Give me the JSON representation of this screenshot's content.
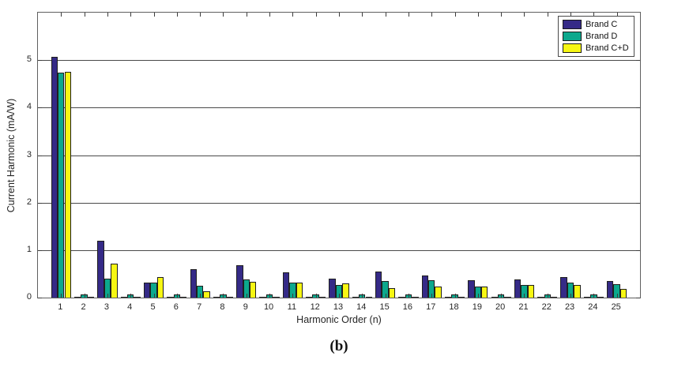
{
  "figure": {
    "ylabel": "Current Harmonic (mA/W)",
    "xlabel": "Harmonic Order (n)",
    "caption": "(b)"
  },
  "colors": {
    "brand_c": "#352A87",
    "brand_d": "#0CA88D",
    "brand_cd": "#F7F713",
    "bar_edge": "#1f1f1f",
    "grid": "#4a4a4a",
    "axis_box": "#5f5f5f"
  },
  "chart_data": {
    "type": "bar",
    "title": "",
    "xlabel": "Harmonic Order (n)",
    "ylabel": "Current Harmonic (mA/W)",
    "categories": [
      "1",
      "2",
      "3",
      "4",
      "5",
      "6",
      "7",
      "8",
      "9",
      "10",
      "11",
      "12",
      "13",
      "14",
      "15",
      "16",
      "17",
      "18",
      "19",
      "20",
      "21",
      "22",
      "23",
      "24",
      "25"
    ],
    "series": [
      {
        "name": "Brand C",
        "color": "#352A87",
        "values": [
          5.07,
          0.02,
          1.19,
          0.02,
          0.31,
          0.02,
          0.6,
          0.02,
          0.68,
          0.02,
          0.53,
          0.02,
          0.4,
          0.02,
          0.55,
          0.02,
          0.46,
          0.02,
          0.36,
          0.02,
          0.39,
          0.02,
          0.43,
          0.02,
          0.35
        ]
      },
      {
        "name": "Brand D",
        "color": "#0CA88D",
        "values": [
          4.73,
          0.07,
          0.4,
          0.07,
          0.32,
          0.07,
          0.25,
          0.07,
          0.38,
          0.06,
          0.31,
          0.07,
          0.27,
          0.07,
          0.35,
          0.06,
          0.37,
          0.06,
          0.23,
          0.06,
          0.26,
          0.06,
          0.32,
          0.07,
          0.29
        ]
      },
      {
        "name": "Brand C+D",
        "color": "#F7F713",
        "values": [
          4.75,
          0.02,
          0.71,
          0.02,
          0.43,
          0.02,
          0.14,
          0.02,
          0.34,
          0.02,
          0.32,
          0.02,
          0.3,
          0.02,
          0.2,
          0.02,
          0.24,
          0.02,
          0.24,
          0.02,
          0.27,
          0.02,
          0.27,
          0.02,
          0.19
        ]
      }
    ],
    "ylim": [
      0,
      6
    ],
    "yticks": [
      0,
      1,
      2,
      3,
      4,
      5
    ],
    "xlim": [
      0,
      26
    ],
    "grid": "horizontal-only",
    "legend_position": "top-right"
  }
}
